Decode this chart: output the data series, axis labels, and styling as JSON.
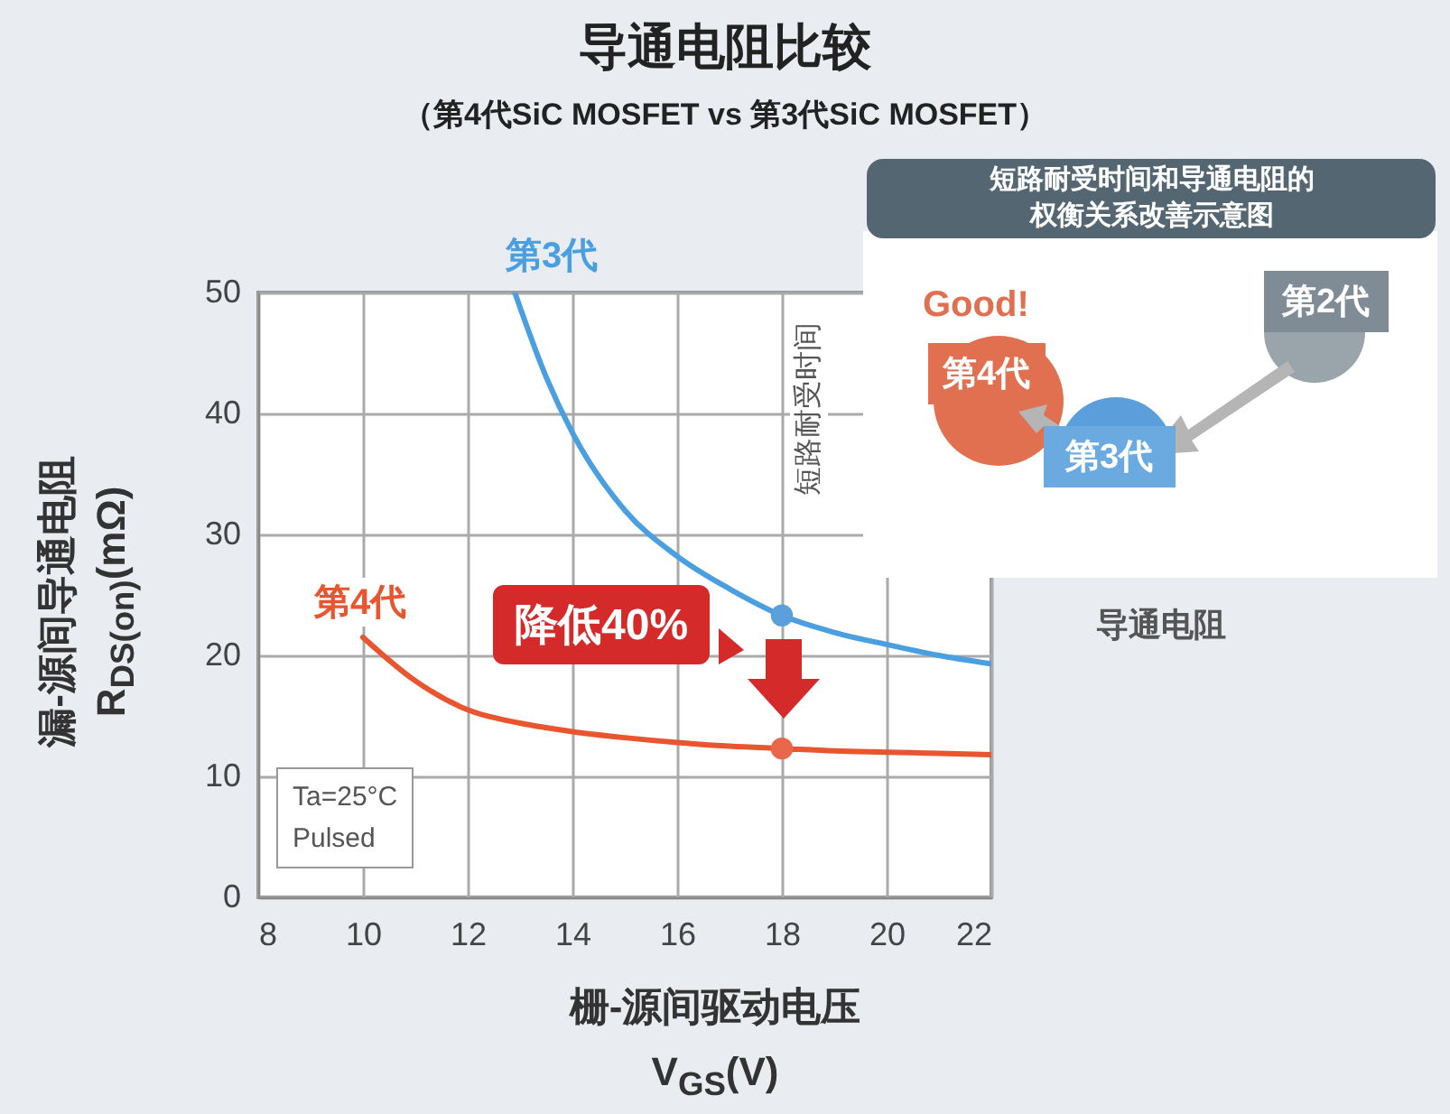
{
  "chart_data": {
    "type": "line",
    "title": "导通电阻比较",
    "subtitle": "（第4代SiC MOSFET vs 第3代SiC MOSFET）",
    "xlabel": "栅-源间驱动电压 V$_{GS}$(V)",
    "ylabel": "漏-源间导通电阻 R$_{DS(on)}$(mΩ)",
    "xlim": [
      8,
      22
    ],
    "xticks": [
      8,
      10,
      12,
      14,
      16,
      18,
      20,
      22
    ],
    "ylim": [
      0,
      50
    ],
    "yticks": [
      0,
      10,
      20,
      30,
      40,
      50
    ],
    "grid": true,
    "series": [
      {
        "name": "第3代",
        "color": "#4a9fe0",
        "x": [
          12.9,
          13.5,
          14,
          15,
          16,
          17,
          18,
          19,
          20,
          21,
          22
        ],
        "values": [
          50,
          43,
          38.4,
          32,
          28.2,
          25.5,
          23.3,
          21.9,
          20.9,
          20,
          19.3
        ]
      },
      {
        "name": "第4代",
        "color": "#e8552e",
        "x": [
          10,
          11,
          12,
          13,
          14,
          15,
          16,
          17,
          18,
          19,
          20,
          21,
          22
        ],
        "values": [
          21.5,
          17.9,
          15.5,
          14.4,
          13.7,
          13.2,
          12.8,
          12.5,
          12.3,
          12.1,
          12,
          11.9,
          11.8
        ]
      },
      {
        "type": "scatter",
        "color": "#5aa0dc",
        "x": [
          18
        ],
        "values": [
          23.3
        ]
      },
      {
        "type": "scatter",
        "color": "#e8664a",
        "x": [
          18
        ],
        "values": [
          12.3
        ]
      }
    ],
    "annotations": [
      "降低40%",
      "Ta=25°C\nPulsed",
      "短路耐受时间",
      "短路耐受时间和导通电阻的权衡关系改善示意图",
      "Good!",
      "第4代",
      "第3代",
      "第2代",
      "导通电阻"
    ]
  }
}
